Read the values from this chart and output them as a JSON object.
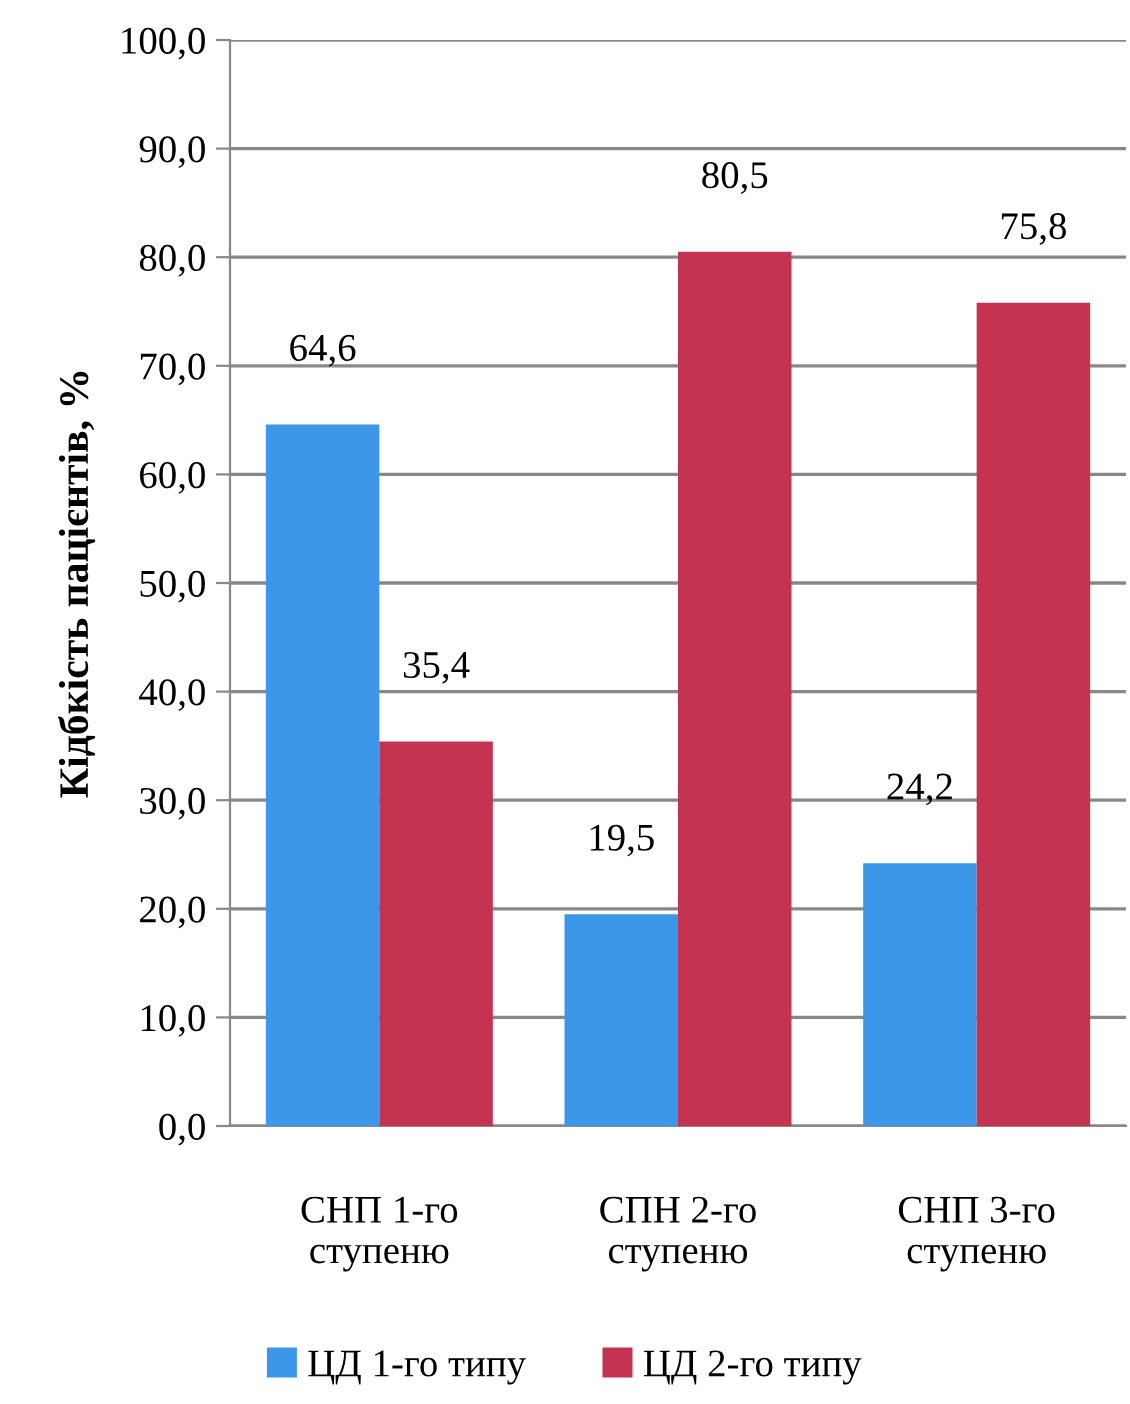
{
  "chart_data": {
    "type": "bar",
    "ylabel": "Кідбкість пацієнтів, %",
    "categories": [
      "СНП 1-го\nступеню",
      "СПН 2-го\nступеню",
      "СНП 3-го\nступеню"
    ],
    "series": [
      {
        "name": "ЦД 1-го типу",
        "color": "#3d97e8",
        "values": [
          64.6,
          19.5,
          24.2
        ],
        "value_labels": [
          "64,6",
          "19,5",
          "24,2"
        ]
      },
      {
        "name": "ЦД 2-го типу",
        "color": "#c43350",
        "values": [
          35.4,
          80.5,
          75.8
        ],
        "value_labels": [
          "35,4",
          "80,5",
          "75,8"
        ]
      }
    ],
    "ylim": [
      0,
      100
    ],
    "yticks": [
      {
        "value": 0,
        "label": "0,0"
      },
      {
        "value": 10,
        "label": "10,0"
      },
      {
        "value": 20,
        "label": "20,0"
      },
      {
        "value": 30,
        "label": "30,0"
      },
      {
        "value": 40,
        "label": "40,0"
      },
      {
        "value": 50,
        "label": "50,0"
      },
      {
        "value": 60,
        "label": "60,0"
      },
      {
        "value": 70,
        "label": "70,0"
      },
      {
        "value": 80,
        "label": "80,0"
      },
      {
        "value": 90,
        "label": "90,0"
      },
      {
        "value": 100,
        "label": "100,0"
      }
    ],
    "grid": "y",
    "legend": "bottom"
  }
}
